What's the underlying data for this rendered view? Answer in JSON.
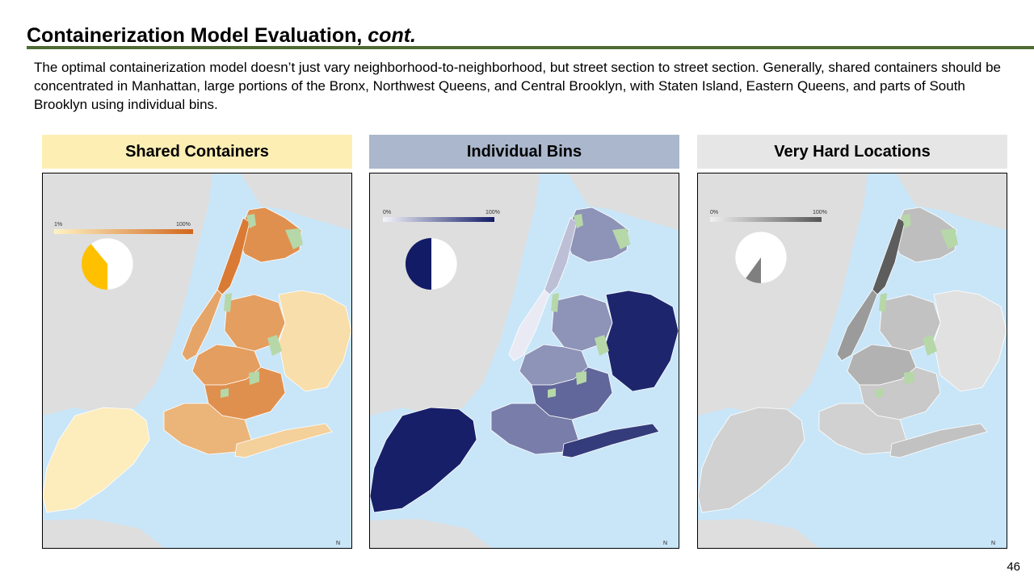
{
  "slide": {
    "title": "Containerization Model Evaluation,",
    "title_italic": "cont.",
    "description": "The optimal containerization model doesn’t just vary neighborhood-to-neighborhood, but street section to street section. Generally, shared containers should be concentrated in Manhattan, large portions of the Bronx, Northwest Queens, and Central Brooklyn, with Staten Island, Eastern Queens, and parts of South Brooklyn using individual bins.",
    "page_number": "46",
    "accent_color": "#4e6b34"
  },
  "panels": [
    {
      "title": "Shared Containers",
      "header_color": "#fdeeb4",
      "legend_min": "1%",
      "legend_max": "100%",
      "gradient": [
        "#fff3c4",
        "#d2661c"
      ],
      "pie_fraction": 0.39,
      "pie_color": "#ffc000",
      "north_label": "N"
    },
    {
      "title": "Individual Bins",
      "header_color": "#aab7cc",
      "legend_min": "0%",
      "legend_max": "100%",
      "gradient": [
        "#f4f5fb",
        "#121b66"
      ],
      "pie_fraction": 0.5,
      "pie_color": "#121b66",
      "north_label": "N"
    },
    {
      "title": "Very Hard Locations",
      "header_color": "#e6e6e6",
      "legend_min": "0%",
      "legend_max": "100%",
      "gradient": [
        "#f0f0f0",
        "#555555"
      ],
      "pie_fraction": 0.1,
      "pie_color": "#7f7f7f",
      "north_label": "N"
    }
  ],
  "map_colors": {
    "water": "#c9e6f8",
    "land_outside": "#dedede",
    "parks": "#b6d7a8"
  },
  "region_shading": {
    "shared": {
      "manhattan": [
        0.55,
        0.85
      ],
      "bronx": [
        0.55,
        0.85
      ],
      "queens_nw": 0.6,
      "queens_e": 0.15,
      "brooklyn_n": 0.6,
      "brooklyn_c": 0.7,
      "brooklyn_s": 0.45,
      "rockaway": 0.25,
      "staten": 0.05
    },
    "individual": {
      "manhattan": [
        0.05,
        0.25
      ],
      "bronx": [
        0.3,
        0.6
      ],
      "queens_nw": 0.45,
      "queens_e": 0.95,
      "brooklyn_n": 0.45,
      "brooklyn_c": 0.65,
      "brooklyn_s": 0.55,
      "rockaway": 0.85,
      "staten": 0.98
    },
    "hard": {
      "manhattan": [
        0.55,
        0.95
      ],
      "bronx": [
        0.2,
        0.45
      ],
      "queens_nw": 0.3,
      "queens_e": 0.1,
      "brooklyn_n": 0.4,
      "brooklyn_c": 0.25,
      "brooklyn_s": 0.2,
      "rockaway": 0.3,
      "staten": 0.2
    }
  }
}
